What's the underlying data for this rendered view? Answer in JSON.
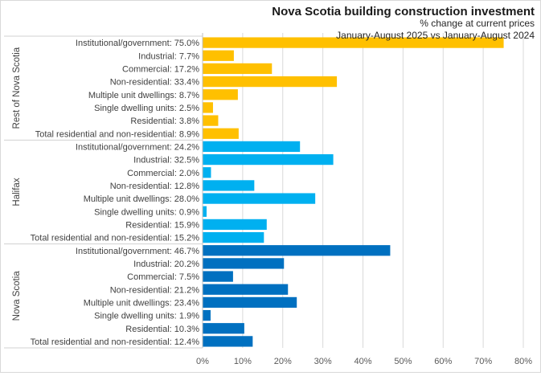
{
  "chart_data": {
    "type": "bar",
    "orientation": "horizontal",
    "title": "Nova Scotia building construction investment",
    "subtitle": "% change at current prices",
    "subtitle2": "January-August 2025 vs January-August 2024",
    "xlabel": "",
    "ylabel": "",
    "xlim": [
      0,
      80
    ],
    "xticks": [
      0,
      10,
      20,
      30,
      40,
      50,
      60,
      70,
      80
    ],
    "xtick_labels": [
      "0%",
      "10%",
      "20%",
      "30%",
      "40%",
      "50%",
      "60%",
      "70%",
      "80%"
    ],
    "grid": "vertical",
    "legend": "none",
    "groups": [
      {
        "name": "Rest of Nova Scotia",
        "color": "#FFC000",
        "categories": [
          "Institutional/government: 75.0%",
          "Industrial: 7.7%",
          "Commercial: 17.2%",
          "Non-residential: 33.4%",
          "Multiple unit dwellings: 8.7%",
          "Single dwelling units: 2.5%",
          "Residential: 3.8%",
          "Total residential and non-residential: 8.9%"
        ],
        "values": [
          75.0,
          7.7,
          17.2,
          33.4,
          8.7,
          2.5,
          3.8,
          8.9
        ]
      },
      {
        "name": "Halifax",
        "color": "#00B0F0",
        "categories": [
          "Institutional/government: 24.2%",
          "Industrial: 32.5%",
          "Commercial: 2.0%",
          "Non-residential: 12.8%",
          "Multiple unit dwellings: 28.0%",
          "Single dwelling units: 0.9%",
          "Residential: 15.9%",
          "Total residential and non-residential: 15.2%"
        ],
        "values": [
          24.2,
          32.5,
          2.0,
          12.8,
          28.0,
          0.9,
          15.9,
          15.2
        ]
      },
      {
        "name": "Nova Scotia",
        "color": "#0070C0",
        "categories": [
          "Institutional/government: 46.7%",
          "Industrial: 20.2%",
          "Commercial: 7.5%",
          "Non-residential: 21.2%",
          "Multiple unit dwellings: 23.4%",
          "Single dwelling units: 1.9%",
          "Residential: 10.3%",
          "Total residential and non-residential: 12.4%"
        ],
        "values": [
          46.7,
          20.2,
          7.5,
          21.2,
          23.4,
          1.9,
          10.3,
          12.4
        ]
      }
    ]
  }
}
